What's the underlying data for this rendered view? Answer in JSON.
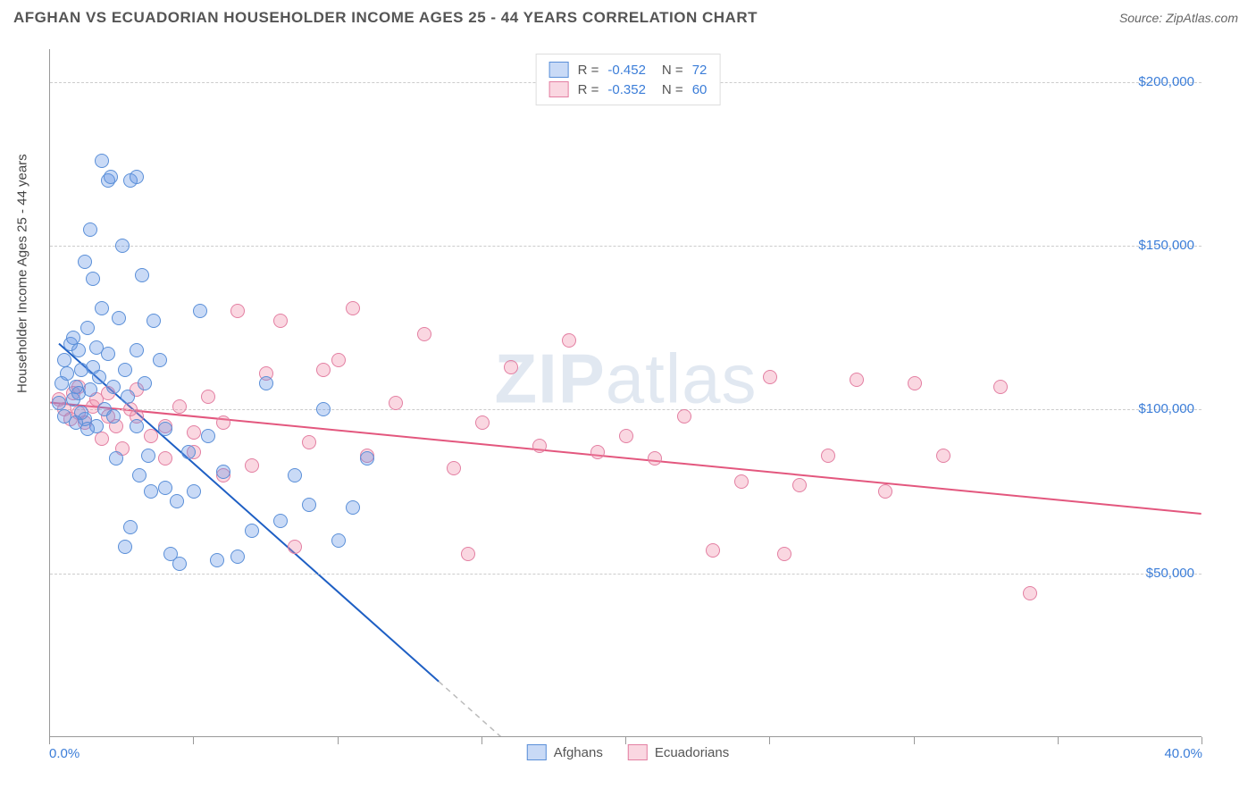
{
  "header": {
    "title": "AFGHAN VS ECUADORIAN HOUSEHOLDER INCOME AGES 25 - 44 YEARS CORRELATION CHART",
    "source_prefix": "Source: ",
    "source_name": "ZipAtlas.com"
  },
  "chart": {
    "type": "scatter",
    "y_axis_title": "Householder Income Ages 25 - 44 years",
    "x_min": 0.0,
    "x_max": 40.0,
    "x_min_label": "0.0%",
    "x_max_label": "40.0%",
    "x_ticks": [
      0,
      5,
      10,
      15,
      20,
      25,
      30,
      35,
      40
    ],
    "y_min": 0,
    "y_max": 210000,
    "y_gridlines": [
      50000,
      100000,
      150000,
      200000
    ],
    "y_labels": [
      "$50,000",
      "$100,000",
      "$150,000",
      "$200,000"
    ],
    "background_color": "#ffffff",
    "grid_color": "#cccccc",
    "axis_color": "#999999",
    "tick_label_color": "#3b7dd8",
    "label_fontsize": 15,
    "title_fontsize": 17,
    "marker_radius": 8
  },
  "watermark": {
    "zip": "ZIP",
    "atlas": "atlas"
  },
  "stats_legend": {
    "r_label": "R =",
    "n_label": "N =",
    "rows": [
      {
        "series": "afghans",
        "r": "-0.452",
        "n": "72"
      },
      {
        "series": "ecuadorians",
        "r": "-0.352",
        "n": "60"
      }
    ]
  },
  "series_legend": {
    "afghans": "Afghans",
    "ecuadorians": "Ecuadorians"
  },
  "series": {
    "afghans": {
      "fill_color": "rgba(100,150,230,0.35)",
      "stroke_color": "#5a8fd8",
      "line_color": "#1e5fc4",
      "line_width": 2,
      "trend": {
        "x1": 0.3,
        "y1": 120000,
        "x2": 15.0,
        "y2": 5000,
        "dash_from_x": 13.5
      },
      "points": [
        [
          0.3,
          102000
        ],
        [
          0.4,
          108000
        ],
        [
          0.5,
          98000
        ],
        [
          0.6,
          111000
        ],
        [
          0.7,
          120000
        ],
        [
          0.8,
          103000
        ],
        [
          0.9,
          107000
        ],
        [
          1.0,
          118000
        ],
        [
          1.0,
          105000
        ],
        [
          1.1,
          112000
        ],
        [
          1.2,
          97000
        ],
        [
          1.2,
          145000
        ],
        [
          1.3,
          125000
        ],
        [
          1.4,
          155000
        ],
        [
          1.5,
          140000
        ],
        [
          1.5,
          113000
        ],
        [
          1.6,
          95000
        ],
        [
          1.7,
          110000
        ],
        [
          1.8,
          176000
        ],
        [
          1.8,
          131000
        ],
        [
          1.9,
          100000
        ],
        [
          2.0,
          170000
        ],
        [
          2.0,
          117000
        ],
        [
          2.1,
          171000
        ],
        [
          2.2,
          107000
        ],
        [
          2.3,
          85000
        ],
        [
          2.4,
          128000
        ],
        [
          2.5,
          150000
        ],
        [
          2.6,
          58000
        ],
        [
          2.7,
          104000
        ],
        [
          2.8,
          170000
        ],
        [
          2.8,
          64000
        ],
        [
          3.0,
          171000
        ],
        [
          3.0,
          95000
        ],
        [
          3.1,
          80000
        ],
        [
          3.2,
          141000
        ],
        [
          3.3,
          108000
        ],
        [
          3.4,
          86000
        ],
        [
          3.5,
          75000
        ],
        [
          3.6,
          127000
        ],
        [
          3.8,
          115000
        ],
        [
          4.0,
          76000
        ],
        [
          4.0,
          94000
        ],
        [
          4.2,
          56000
        ],
        [
          4.4,
          72000
        ],
        [
          4.5,
          53000
        ],
        [
          4.8,
          87000
        ],
        [
          5.0,
          75000
        ],
        [
          5.2,
          130000
        ],
        [
          5.5,
          92000
        ],
        [
          5.8,
          54000
        ],
        [
          6.0,
          81000
        ],
        [
          6.5,
          55000
        ],
        [
          7.0,
          63000
        ],
        [
          7.5,
          108000
        ],
        [
          8.0,
          66000
        ],
        [
          8.5,
          80000
        ],
        [
          9.0,
          71000
        ],
        [
          9.5,
          100000
        ],
        [
          10.0,
          60000
        ],
        [
          10.5,
          70000
        ],
        [
          11.0,
          85000
        ],
        [
          1.1,
          99000
        ],
        [
          1.3,
          94000
        ],
        [
          1.6,
          119000
        ],
        [
          0.5,
          115000
        ],
        [
          0.8,
          122000
        ],
        [
          2.2,
          98000
        ],
        [
          2.6,
          112000
        ],
        [
          3.0,
          118000
        ],
        [
          0.9,
          96000
        ],
        [
          1.4,
          106000
        ]
      ]
    },
    "ecuadorians": {
      "fill_color": "rgba(240,140,170,0.35)",
      "stroke_color": "#e37fa2",
      "line_color": "#e3577e",
      "line_width": 2,
      "trend": {
        "x1": 0.0,
        "y1": 102000,
        "x2": 40.0,
        "y2": 68000
      },
      "points": [
        [
          0.3,
          103000
        ],
        [
          0.5,
          100000
        ],
        [
          0.8,
          105000
        ],
        [
          1.0,
          99000
        ],
        [
          1.2,
          96000
        ],
        [
          1.5,
          101000
        ],
        [
          1.8,
          91000
        ],
        [
          2.0,
          105000
        ],
        [
          2.3,
          95000
        ],
        [
          2.5,
          88000
        ],
        [
          3.0,
          98000
        ],
        [
          3.5,
          92000
        ],
        [
          4.0,
          85000
        ],
        [
          4.5,
          101000
        ],
        [
          5.0,
          87000
        ],
        [
          5.5,
          104000
        ],
        [
          6.0,
          96000
        ],
        [
          6.5,
          130000
        ],
        [
          7.0,
          83000
        ],
        [
          7.5,
          111000
        ],
        [
          8.0,
          127000
        ],
        [
          8.5,
          58000
        ],
        [
          9.0,
          90000
        ],
        [
          9.5,
          112000
        ],
        [
          10.0,
          115000
        ],
        [
          10.5,
          131000
        ],
        [
          11.0,
          86000
        ],
        [
          12.0,
          102000
        ],
        [
          13.0,
          123000
        ],
        [
          14.0,
          82000
        ],
        [
          14.5,
          56000
        ],
        [
          15.0,
          96000
        ],
        [
          16.0,
          113000
        ],
        [
          17.0,
          89000
        ],
        [
          18.0,
          121000
        ],
        [
          19.0,
          87000
        ],
        [
          20.0,
          92000
        ],
        [
          21.0,
          85000
        ],
        [
          22.0,
          98000
        ],
        [
          23.0,
          57000
        ],
        [
          24.0,
          78000
        ],
        [
          25.0,
          110000
        ],
        [
          25.5,
          56000
        ],
        [
          26.0,
          77000
        ],
        [
          27.0,
          86000
        ],
        [
          28.0,
          109000
        ],
        [
          29.0,
          75000
        ],
        [
          30.0,
          108000
        ],
        [
          31.0,
          86000
        ],
        [
          33.0,
          107000
        ],
        [
          34.0,
          44000
        ],
        [
          1.0,
          107000
        ],
        [
          2.0,
          98000
        ],
        [
          3.0,
          106000
        ],
        [
          4.0,
          95000
        ],
        [
          5.0,
          93000
        ],
        [
          0.7,
          97000
        ],
        [
          1.6,
          103000
        ],
        [
          2.8,
          100000
        ],
        [
          6.0,
          80000
        ]
      ]
    }
  }
}
